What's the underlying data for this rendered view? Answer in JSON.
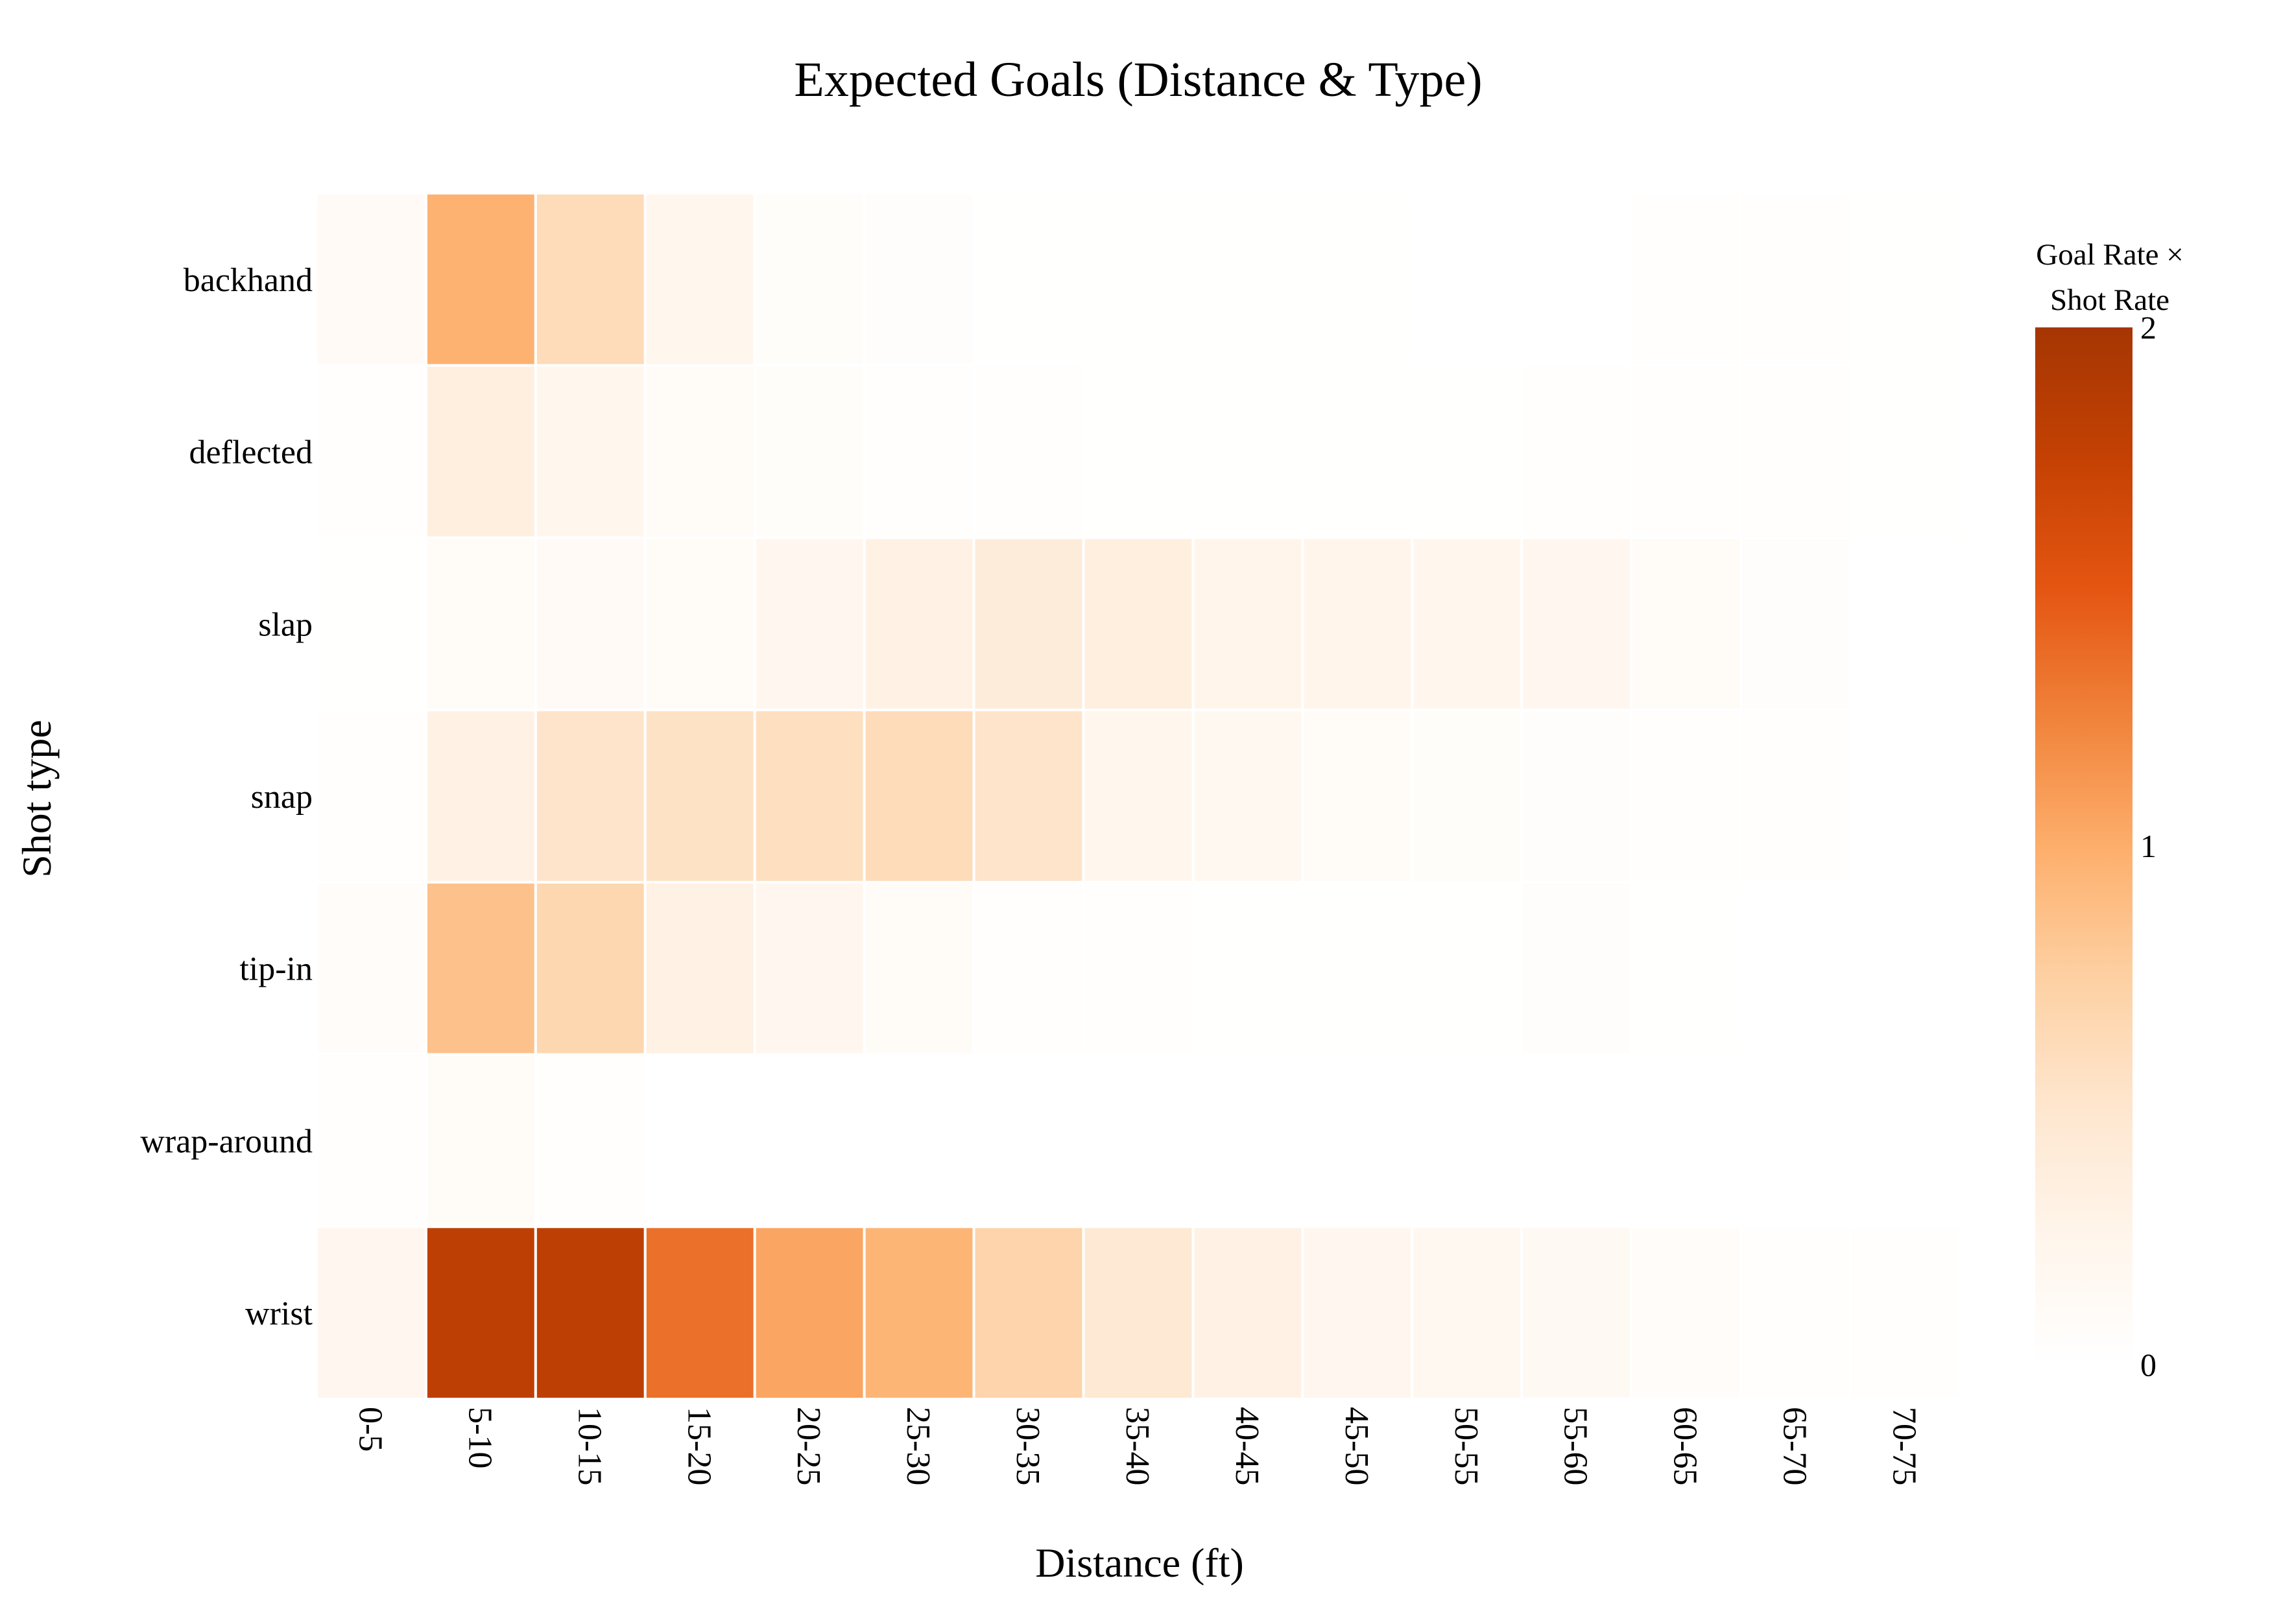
{
  "chart_data": {
    "type": "heatmap",
    "title": "Expected Goals (Distance & Type)",
    "xlabel": "Distance (ft)",
    "ylabel": "Shot type",
    "x_categories": [
      "0-5",
      "5-10",
      "10-15",
      "15-20",
      "20-25",
      "25-30",
      "30-35",
      "35-40",
      "40-45",
      "45-50",
      "50-55",
      "55-60",
      "60-65",
      "65-70",
      "70-75"
    ],
    "y_categories": [
      "backhand",
      "deflected",
      "slap",
      "snap",
      "tip-in",
      "wrap-around",
      "wrist"
    ],
    "z": [
      [
        0.12,
        0.97,
        0.62,
        0.22,
        0.06,
        0.04,
        0.01,
        0.01,
        0.01,
        0.01,
        0.005,
        0.005,
        0.02,
        0.02,
        0.01
      ],
      [
        0.03,
        0.35,
        0.22,
        0.1,
        0.06,
        0.02,
        0.02,
        0.01,
        0.01,
        0.01,
        0.01,
        0.02,
        0.02,
        0.02,
        0.01
      ],
      [
        0.01,
        0.1,
        0.13,
        0.1,
        0.2,
        0.3,
        0.4,
        0.35,
        0.25,
        0.25,
        0.22,
        0.2,
        0.1,
        0.05,
        null
      ],
      [
        0.02,
        0.3,
        0.52,
        0.55,
        0.58,
        0.62,
        0.52,
        0.22,
        0.17,
        0.1,
        0.06,
        0.04,
        0.02,
        0.02,
        null
      ],
      [
        0.07,
        0.85,
        0.67,
        0.32,
        0.2,
        0.1,
        0.02,
        0.02,
        0.01,
        0.01,
        0.01,
        0.05,
        0.01,
        null,
        null
      ],
      [
        0.03,
        0.1,
        0.02,
        null,
        null,
        null,
        null,
        null,
        null,
        null,
        null,
        null,
        null,
        null,
        null
      ],
      [
        0.2,
        1.8,
        1.8,
        1.35,
        1.05,
        0.95,
        0.7,
        0.45,
        0.3,
        0.2,
        0.18,
        0.15,
        0.08,
        0.03,
        0.03
      ]
    ],
    "zmin": 0,
    "zmax": 2,
    "colorscale": "Oranges",
    "colorbar": {
      "title_lines": [
        "Goal Rate ×",
        "Shot Rate"
      ],
      "ticks": [
        0,
        1,
        2
      ]
    },
    "colors": {
      "scale": [
        "#ffffff",
        "#fff5eb",
        "#fee6ce",
        "#fdd0a2",
        "#fdae6b",
        "#f0823a",
        "#e45511",
        "#c44103",
        "#a53603"
      ],
      "cell_border": "#ffffff"
    }
  }
}
